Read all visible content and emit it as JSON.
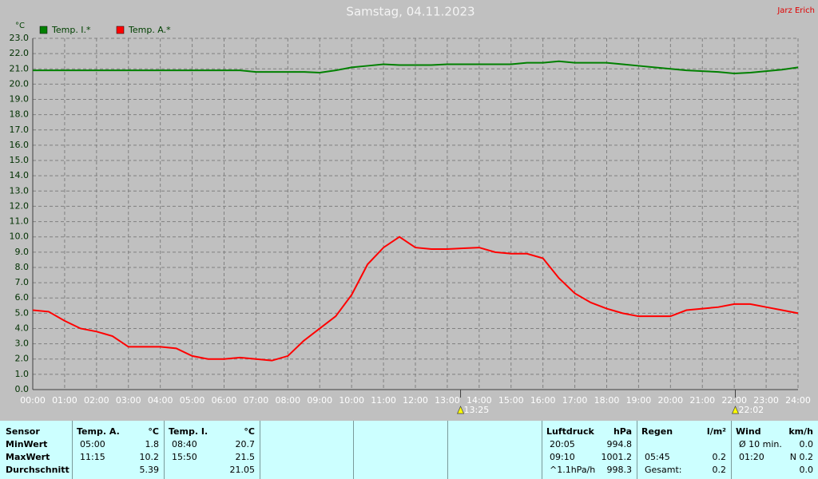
{
  "chart_data": {
    "type": "line",
    "title": "Samstag, 04.11.2023",
    "author": "Jarz Erich",
    "ylabel": "°C",
    "x": [
      0,
      0.5,
      1,
      1.5,
      2,
      2.5,
      3,
      3.5,
      4,
      4.5,
      5,
      5.5,
      6,
      6.5,
      7,
      7.5,
      8,
      8.5,
      9,
      9.5,
      10,
      10.5,
      11,
      11.5,
      12,
      12.5,
      13,
      13.5,
      14,
      14.5,
      15,
      15.5,
      16,
      16.5,
      17,
      17.5,
      18,
      18.5,
      19,
      19.5,
      20,
      20.5,
      21,
      21.5,
      22,
      22.5,
      23,
      23.5,
      24
    ],
    "series": [
      {
        "name": "Temp. I.*",
        "color": "#008000",
        "values": [
          20.9,
          20.9,
          20.9,
          20.9,
          20.9,
          20.9,
          20.9,
          20.9,
          20.9,
          20.9,
          20.9,
          20.9,
          20.9,
          20.9,
          20.8,
          20.8,
          20.8,
          20.8,
          20.75,
          20.9,
          21.1,
          21.2,
          21.3,
          21.25,
          21.25,
          21.25,
          21.3,
          21.3,
          21.3,
          21.3,
          21.3,
          21.4,
          21.4,
          21.5,
          21.4,
          21.4,
          21.4,
          21.3,
          21.2,
          21.1,
          21.0,
          20.9,
          20.85,
          20.8,
          20.7,
          20.75,
          20.85,
          20.95,
          21.1
        ]
      },
      {
        "name": "Temp. A.*",
        "color": "#ff0000",
        "values": [
          5.2,
          5.1,
          4.5,
          4.0,
          3.8,
          3.5,
          2.8,
          2.8,
          2.8,
          2.7,
          2.2,
          2.0,
          2.0,
          2.1,
          2.0,
          1.9,
          2.2,
          3.2,
          4.0,
          4.8,
          6.2,
          8.2,
          9.3,
          10.0,
          9.3,
          9.2,
          9.2,
          9.25,
          9.3,
          9.0,
          8.9,
          8.9,
          8.6,
          7.3,
          6.3,
          5.7,
          5.3,
          5.0,
          4.8,
          4.8,
          4.8,
          5.2,
          5.3,
          5.4,
          5.6,
          5.6,
          5.4,
          5.2,
          5.0
        ]
      }
    ],
    "xlim": [
      0,
      24
    ],
    "ylim": [
      0,
      23
    ],
    "xticks": [
      {
        "value": 0,
        "label": "00:00"
      },
      {
        "value": 1,
        "label": "01:00"
      },
      {
        "value": 2,
        "label": "02:00"
      },
      {
        "value": 3,
        "label": "03:00"
      },
      {
        "value": 4,
        "label": "04:00"
      },
      {
        "value": 5,
        "label": "05:00"
      },
      {
        "value": 6,
        "label": "06:00"
      },
      {
        "value": 7,
        "label": "07:00"
      },
      {
        "value": 8,
        "label": "08:00"
      },
      {
        "value": 9,
        "label": "09:00"
      },
      {
        "value": 10,
        "label": "10:00"
      },
      {
        "value": 11,
        "label": "11:00"
      },
      {
        "value": 12,
        "label": "12:00"
      },
      {
        "value": 13,
        "label": "13:00"
      },
      {
        "value": 14,
        "label": "14:00"
      },
      {
        "value": 15,
        "label": "15:00"
      },
      {
        "value": 16,
        "label": "16:00"
      },
      {
        "value": 17,
        "label": "17:00"
      },
      {
        "value": 18,
        "label": "18:00"
      },
      {
        "value": 19,
        "label": "19:00"
      },
      {
        "value": 20,
        "label": "20:00"
      },
      {
        "value": 21,
        "label": "21:00"
      },
      {
        "value": 22,
        "label": "22:00"
      },
      {
        "value": 23,
        "label": "23:00"
      },
      {
        "value": 24,
        "label": "24:00"
      }
    ],
    "yticks": [
      {
        "value": 0,
        "label": "0.0"
      },
      {
        "value": 1,
        "label": "1.0"
      },
      {
        "value": 2,
        "label": "2.0"
      },
      {
        "value": 3,
        "label": "3.0"
      },
      {
        "value": 4,
        "label": "4.0"
      },
      {
        "value": 5,
        "label": "5.0"
      },
      {
        "value": 6,
        "label": "6.0"
      },
      {
        "value": 7,
        "label": "7.0"
      },
      {
        "value": 8,
        "label": "8.0"
      },
      {
        "value": 9,
        "label": "9.0"
      },
      {
        "value": 10,
        "label": "10.0"
      },
      {
        "value": 11,
        "label": "11.0"
      },
      {
        "value": 12,
        "label": "12.0"
      },
      {
        "value": 13,
        "label": "13.0"
      },
      {
        "value": 14,
        "label": "14.0"
      },
      {
        "value": 15,
        "label": "15.0"
      },
      {
        "value": 16,
        "label": "16.0"
      },
      {
        "value": 17,
        "label": "17.0"
      },
      {
        "value": 18,
        "label": "18.0"
      },
      {
        "value": 19,
        "label": "19.0"
      },
      {
        "value": 20,
        "label": "20.0"
      },
      {
        "value": 21,
        "label": "21.0"
      },
      {
        "value": 22,
        "label": "22.0"
      },
      {
        "value": 23,
        "label": "23.0"
      }
    ],
    "annotations": [
      {
        "x": 13.4167,
        "label": "13:25"
      },
      {
        "x": 22.0333,
        "label": "22:02"
      }
    ],
    "grid": true
  },
  "table": {
    "sensor_header": "Sensor",
    "row_labels": [
      "MinWert",
      "MaxWert",
      "Durchschnitt"
    ],
    "groups": [
      {
        "header": "Temp. A.",
        "unit": "°C",
        "rows": [
          [
            "05:00",
            "1.8"
          ],
          [
            "11:15",
            "10.2"
          ],
          [
            null,
            "5.39"
          ]
        ]
      },
      {
        "header": "Temp. I.",
        "unit": "°C",
        "rows": [
          [
            "08:40",
            "20.7"
          ],
          [
            "15:50",
            "21.5"
          ],
          [
            null,
            "21.05"
          ]
        ]
      },
      {
        "header": "Luftdruck",
        "unit": "hPa",
        "rows": [
          [
            "20:05",
            "994.8"
          ],
          [
            "09:10",
            "1001.2"
          ],
          [
            "^1.1hPa/h",
            "998.3"
          ]
        ]
      },
      {
        "header": "Regen",
        "unit": "l/m²",
        "rows": [
          [
            null,
            null
          ],
          [
            "05:45",
            "0.2"
          ],
          [
            "Gesamt:",
            "0.2"
          ]
        ]
      },
      {
        "header": "Wind",
        "unit": "km/h",
        "rows": [
          [
            "Ø 10 min.",
            "0.0"
          ],
          [
            "01:20",
            "N 0.2"
          ],
          [
            null,
            "0.0"
          ]
        ]
      }
    ]
  }
}
